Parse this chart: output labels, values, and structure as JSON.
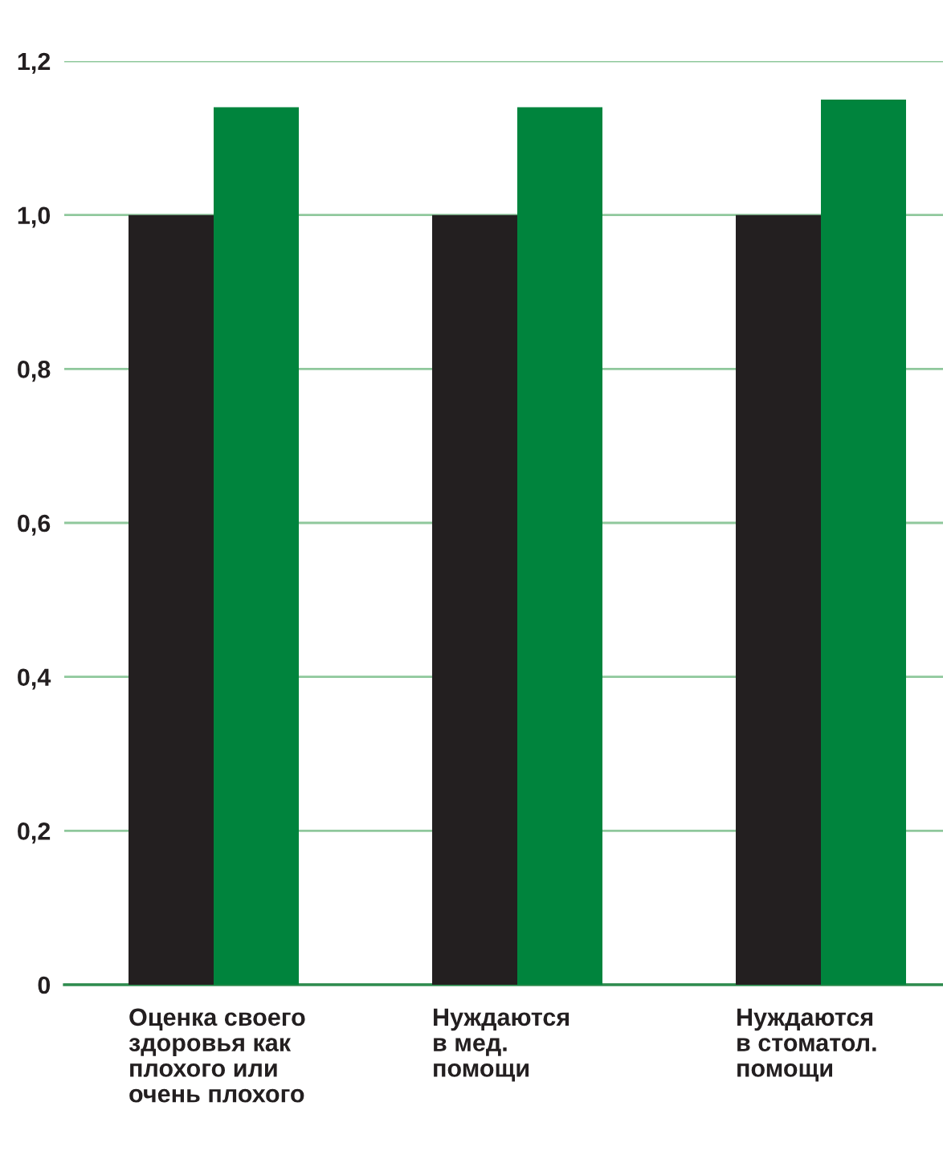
{
  "chart_data": {
    "type": "bar",
    "categories": [
      "Оценка своего\nздоровья как\nплохого или\nочень плохого",
      "Нуждаются\nв мед.\nпомощи",
      "Нуждаются\nв стоматол.\nпомощи"
    ],
    "series": [
      {
        "color": "#231f20",
        "values": [
          1.0,
          1.0,
          1.0
        ]
      },
      {
        "color": "#00843d",
        "values": [
          1.14,
          1.14,
          1.15
        ]
      }
    ],
    "ylim": [
      0,
      1.2
    ],
    "yticks": [
      {
        "value": 0,
        "label": "0"
      },
      {
        "value": 0.2,
        "label": "0,2"
      },
      {
        "value": 0.4,
        "label": "0,4"
      },
      {
        "value": 0.6,
        "label": "0,6"
      },
      {
        "value": 0.8,
        "label": "0,8"
      },
      {
        "value": 1.0,
        "label": "1,0"
      },
      {
        "value": 1.2,
        "label": "1,2"
      }
    ],
    "grid": "y"
  }
}
